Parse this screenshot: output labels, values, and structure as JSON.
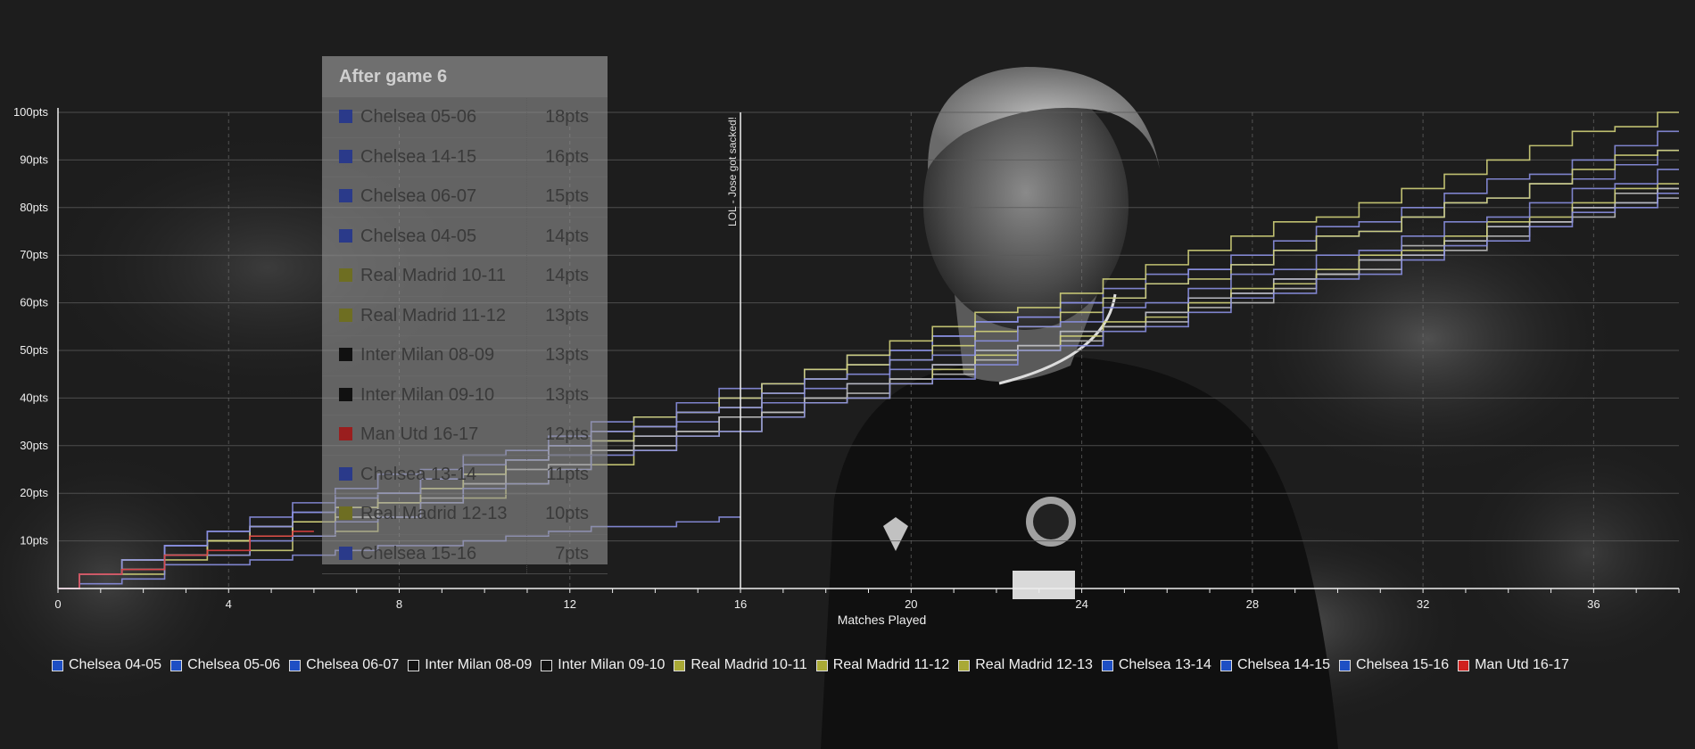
{
  "chart_data": {
    "type": "line",
    "xlabel": "Matches Played",
    "ylabel": "",
    "xlim": [
      0,
      38
    ],
    "ylim": [
      0,
      100
    ],
    "x_ticks": [
      0,
      4,
      8,
      12,
      16,
      20,
      24,
      28,
      32,
      36
    ],
    "y_ticks": [
      10,
      20,
      30,
      40,
      50,
      60,
      70,
      80,
      90,
      100
    ],
    "y_tick_labels": [
      "10pts",
      "20pts",
      "30pts",
      "40pts",
      "50pts",
      "60pts",
      "70pts",
      "80pts",
      "90pts",
      "100pts"
    ],
    "annotation": {
      "x": 16,
      "text": "LOL - Jose got sacked!"
    },
    "legend_position": "bottom",
    "series": [
      {
        "name": "Chelsea 04-05",
        "color": "#8a8fe0",
        "swatch": "#1e4fc4",
        "points_after_game_6": 14,
        "final_points": 95
      },
      {
        "name": "Chelsea 05-06",
        "color": "#8a8fe0",
        "swatch": "#1e4fc4",
        "points_after_game_6": 18,
        "final_points": 91
      },
      {
        "name": "Chelsea 06-07",
        "color": "#8a8fe0",
        "swatch": "#1e4fc4",
        "points_after_game_6": 15,
        "final_points": 83
      },
      {
        "name": "Inter Milan 08-09",
        "color": "#bcbcbc",
        "swatch": "#111111",
        "points_after_game_6": 13,
        "final_points": 84
      },
      {
        "name": "Inter Milan 09-10",
        "color": "#bcbcbc",
        "swatch": "#111111",
        "points_after_game_6": 13,
        "final_points": 82
      },
      {
        "name": "Real Madrid 10-11",
        "color": "#d2d27a",
        "swatch": "#a9a936",
        "points_after_game_6": 14,
        "final_points": 92
      },
      {
        "name": "Real Madrid 11-12",
        "color": "#d2d27a",
        "swatch": "#a9a936",
        "points_after_game_6": 13,
        "final_points": 100
      },
      {
        "name": "Real Madrid 12-13",
        "color": "#d2d27a",
        "swatch": "#a9a936",
        "points_after_game_6": 10,
        "final_points": 85
      },
      {
        "name": "Chelsea 13-14",
        "color": "#8a8fe0",
        "swatch": "#1e4fc4",
        "points_after_game_6": 11,
        "final_points": 82
      },
      {
        "name": "Chelsea 14-15",
        "color": "#8a8fe0",
        "swatch": "#1e4fc4",
        "points_after_game_6": 16,
        "final_points": 87
      },
      {
        "name": "Chelsea 15-16",
        "color": "#8a8fe0",
        "swatch": "#1e4fc4",
        "points_after_game_6": 7,
        "final_points": 15,
        "games_shown": 16
      },
      {
        "name": "Man Utd 16-17",
        "color": "#e04040",
        "swatch": "#d0201e",
        "points_after_game_6": 12,
        "final_points": 12,
        "games_shown": 6
      }
    ]
  },
  "standings": {
    "title": "After game 6",
    "rows": [
      {
        "team": "Chelsea 05-06",
        "pts": "18pts",
        "color": "#2a3a8a"
      },
      {
        "team": "Chelsea 14-15",
        "pts": "16pts",
        "color": "#2a3a8a"
      },
      {
        "team": "Chelsea 06-07",
        "pts": "15pts",
        "color": "#2a3a8a"
      },
      {
        "team": "Chelsea 04-05",
        "pts": "14pts",
        "color": "#2a3a8a"
      },
      {
        "team": "Real Madrid 10-11",
        "pts": "14pts",
        "color": "#6e6e22"
      },
      {
        "team": "Real Madrid 11-12",
        "pts": "13pts",
        "color": "#6e6e22"
      },
      {
        "team": "Inter Milan 08-09",
        "pts": "13pts",
        "color": "#111111"
      },
      {
        "team": "Inter Milan 09-10",
        "pts": "13pts",
        "color": "#111111"
      },
      {
        "team": "Man Utd 16-17",
        "pts": "12pts",
        "color": "#9a1e1e"
      },
      {
        "team": "Chelsea 13-14",
        "pts": "11pts",
        "color": "#2a3a8a"
      },
      {
        "team": "Real Madrid 12-13",
        "pts": "10pts",
        "color": "#6e6e22"
      },
      {
        "team": "Chelsea 15-16",
        "pts": "7pts",
        "color": "#2a3a8a"
      }
    ]
  }
}
